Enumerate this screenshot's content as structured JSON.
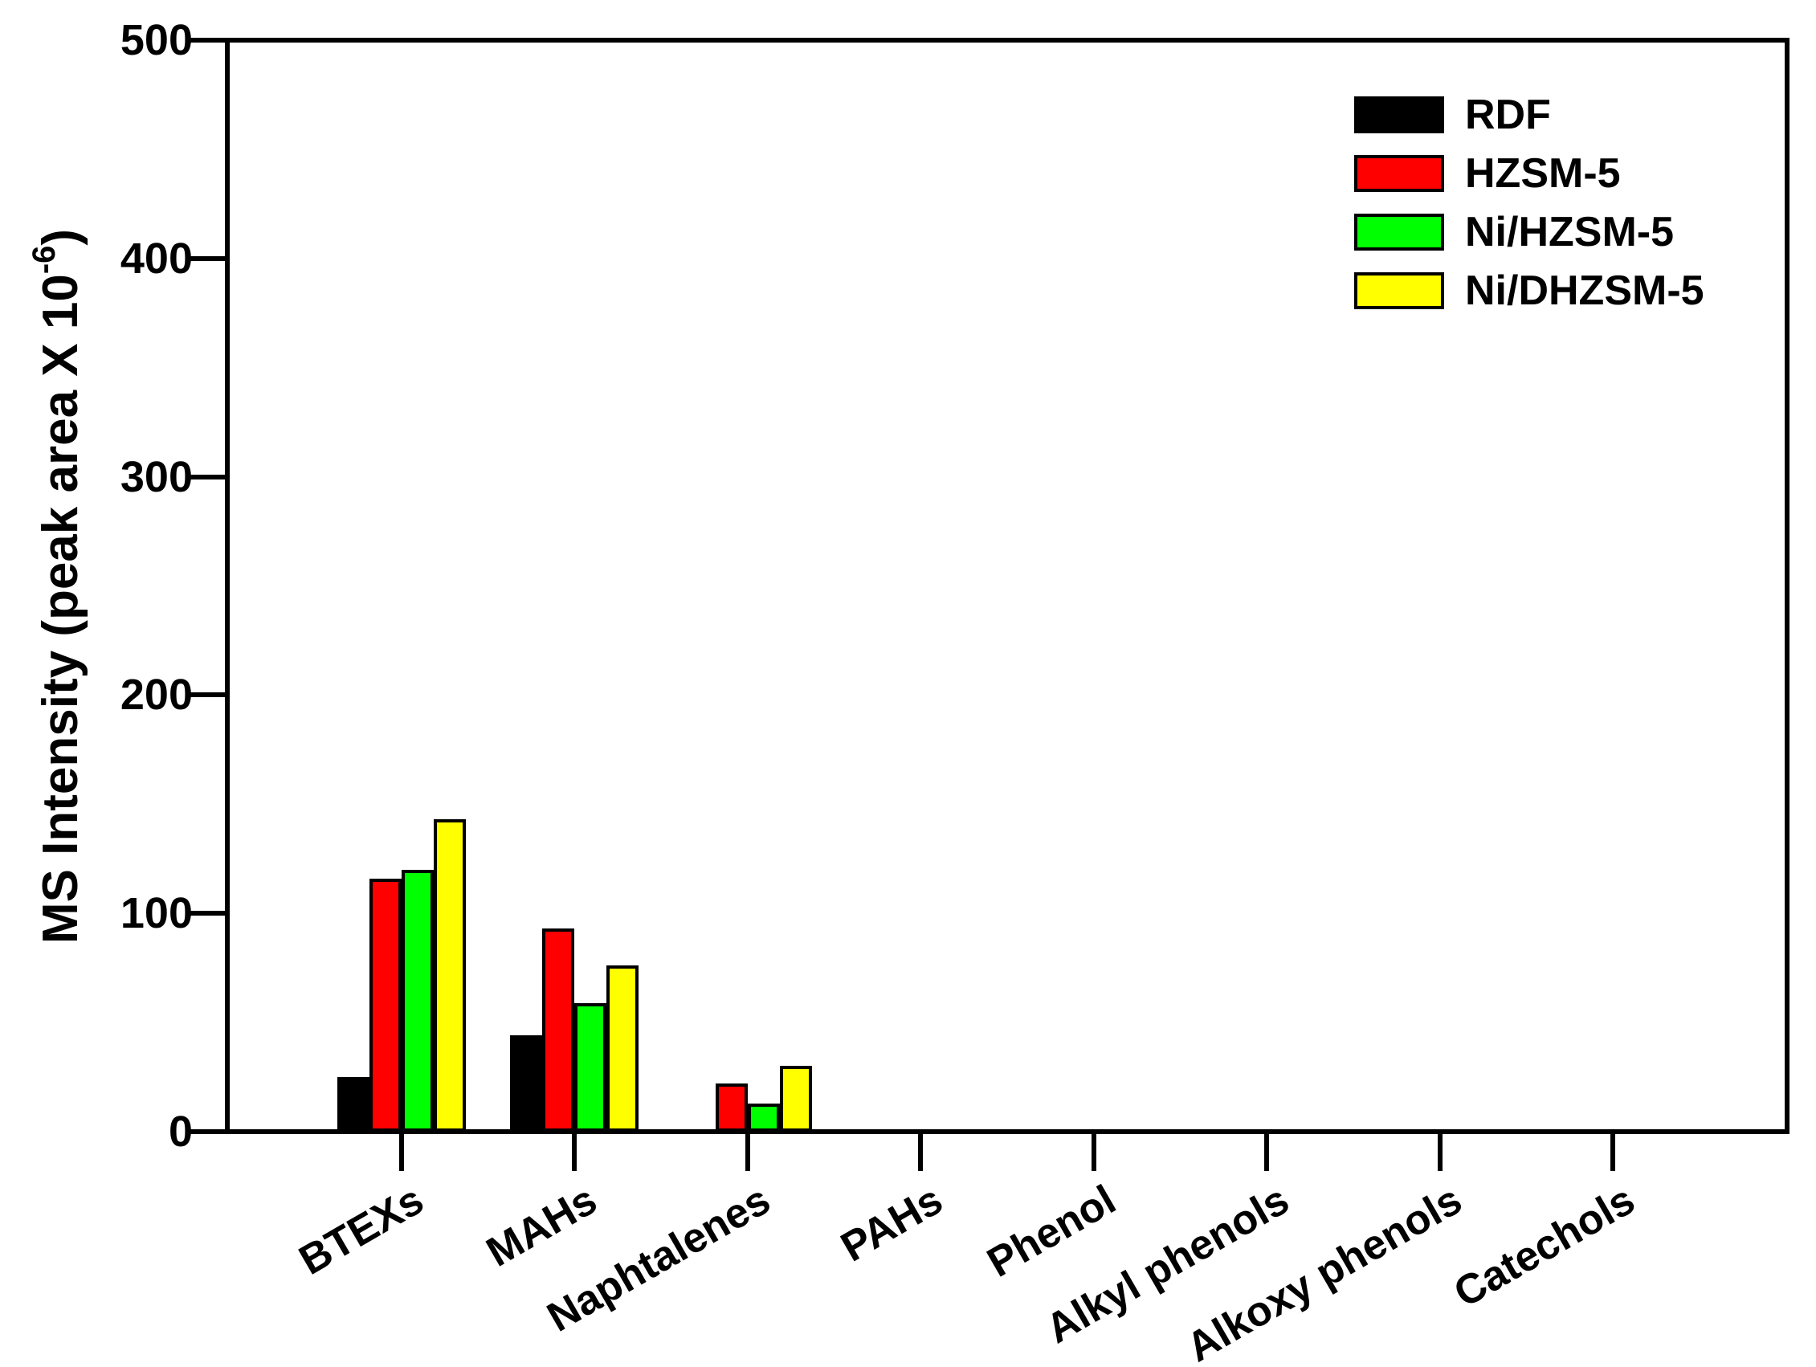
{
  "chart_data": {
    "type": "bar",
    "title": "",
    "categories": [
      "BTEXs",
      "MAHs",
      "Naphtalenes",
      "PAHs",
      "Phenol",
      "Alkyl phenols",
      "Alkoxy phenols",
      "Catechols"
    ],
    "series": [
      {
        "name": "RDF",
        "color": "#000000",
        "values": [
          25,
          44,
          0,
          0,
          0,
          0,
          0,
          0
        ]
      },
      {
        "name": "HZSM-5",
        "color": "#FF0000",
        "values": [
          116,
          93,
          22,
          0,
          0,
          0,
          0,
          0
        ]
      },
      {
        "name": "Ni/HZSM-5",
        "color": "#00FF00",
        "values": [
          120,
          59,
          13,
          0,
          0,
          0,
          0,
          0
        ]
      },
      {
        "name": "Ni/DHZSM-5",
        "color": "#FFFF00",
        "values": [
          143,
          76,
          30,
          0,
          0,
          0,
          0,
          0
        ]
      }
    ],
    "xlabel": "",
    "ylabel": {
      "main": "MS Intensity (peak area X 10",
      "sup": "-6",
      "close": ")"
    },
    "ylim": [
      0,
      500
    ],
    "yticks": [
      0,
      100,
      200,
      300,
      400,
      500
    ],
    "grid": false,
    "legend_position": "top-right",
    "axis_color": "#000000",
    "background_color": "#FFFFFF",
    "bar_border_color": "#000000"
  }
}
